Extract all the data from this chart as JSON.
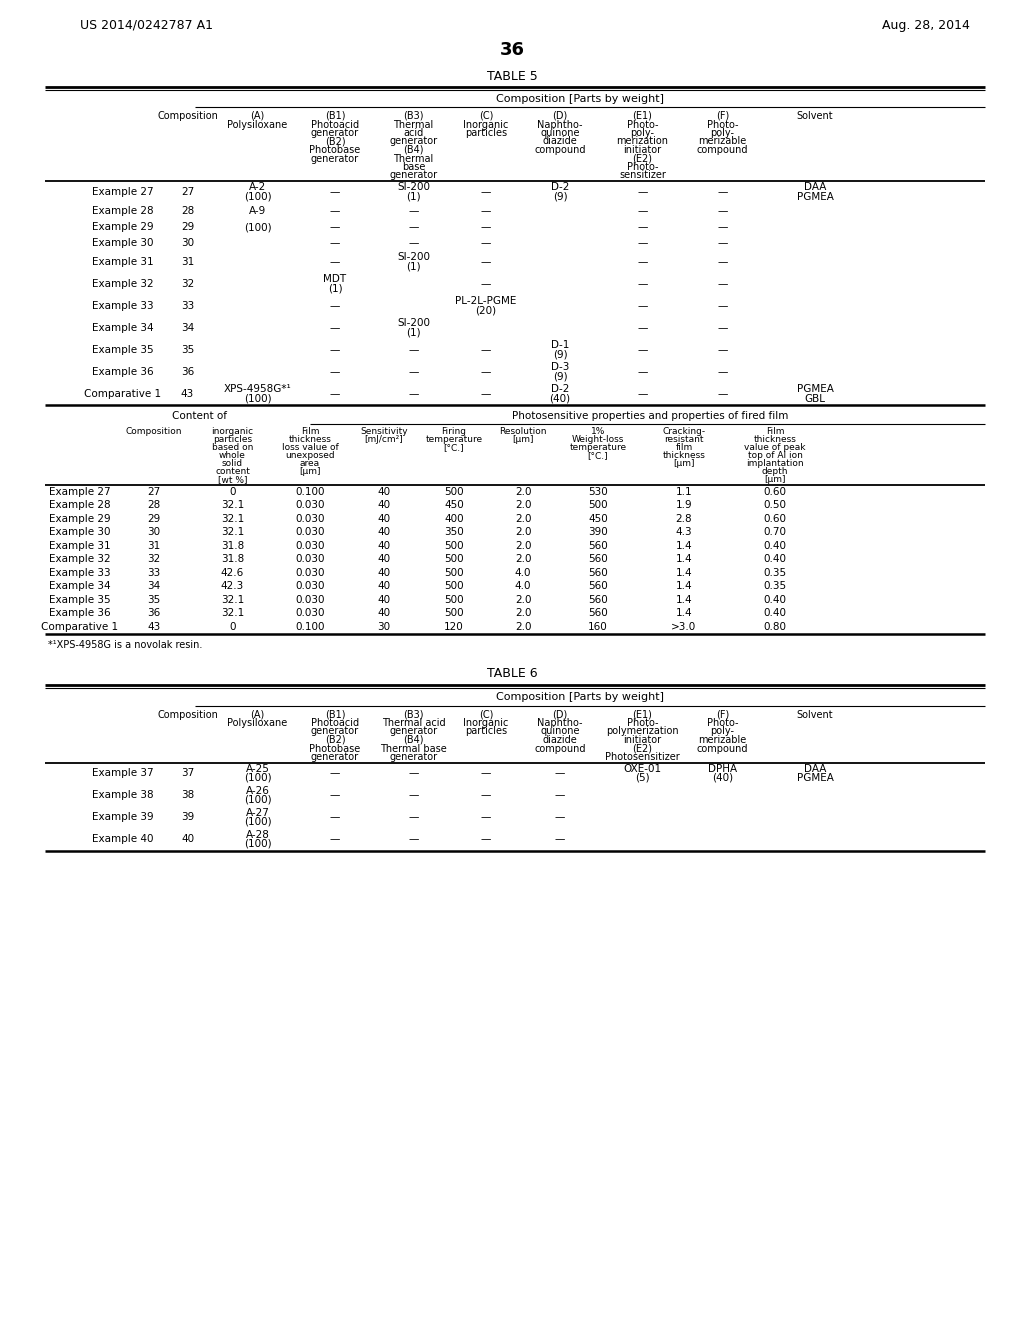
{
  "header_left": "US 2014/0242787 A1",
  "header_right": "Aug. 28, 2014",
  "page_number": "36",
  "bg_color": "#ffffff",
  "footnote": "*¹XPS-4958G is a novolak resin."
}
